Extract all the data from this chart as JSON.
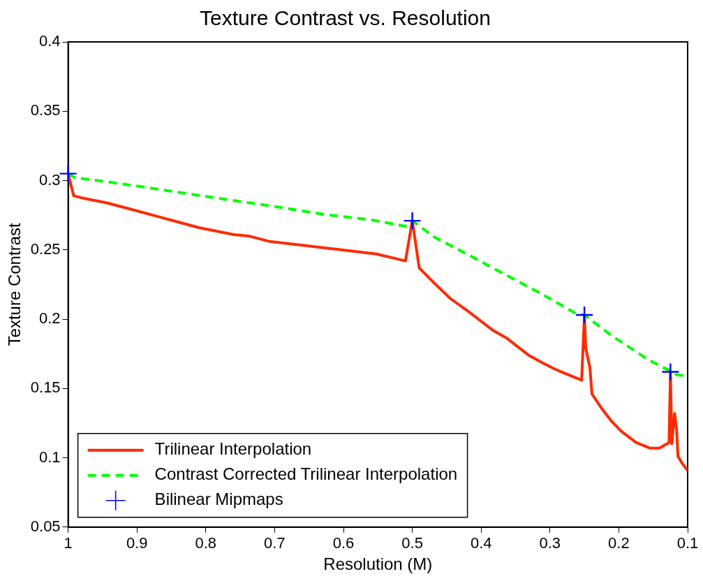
{
  "chart_data": {
    "type": "line",
    "title": "Texture Contrast vs. Resolution",
    "xlabel": "Resolution (M)",
    "ylabel": "Texture Contrast",
    "xlim": [
      1,
      0.1
    ],
    "xticks": [
      1,
      0.9,
      0.8,
      0.7,
      0.6,
      0.5,
      0.4,
      0.3,
      0.2,
      0.1
    ],
    "ylim": [
      0.05,
      0.4
    ],
    "yticks": [
      0.05,
      0.1,
      0.15,
      0.2,
      0.25,
      0.3,
      0.35,
      0.4
    ],
    "grid": false,
    "legend": "bottom left",
    "series": [
      {
        "name": "Trilinear Interpolation",
        "color": "#ff2a00",
        "line_style": "solid",
        "marker": "none",
        "x": [
          1,
          0.992,
          0.976,
          0.945,
          0.914,
          0.862,
          0.81,
          0.759,
          0.738,
          0.707,
          0.655,
          0.603,
          0.552,
          0.51,
          0.5,
          0.49,
          0.466,
          0.445,
          0.417,
          0.383,
          0.362,
          0.331,
          0.313,
          0.293,
          0.279,
          0.254,
          0.25,
          0.248,
          0.242,
          0.239,
          0.224,
          0.21,
          0.196,
          0.175,
          0.155,
          0.141,
          0.127,
          0.125,
          0.123,
          0.119,
          0.116,
          0.114,
          0.108,
          0.1
        ],
        "values": [
          0.305,
          0.289,
          0.287,
          0.284,
          0.28,
          0.273,
          0.266,
          0.261,
          0.26,
          0.256,
          0.253,
          0.25,
          0.247,
          0.242,
          0.271,
          0.237,
          0.225,
          0.215,
          0.205,
          0.192,
          0.186,
          0.174,
          0.169,
          0.164,
          0.161,
          0.156,
          0.202,
          0.179,
          0.165,
          0.146,
          0.135,
          0.126,
          0.119,
          0.111,
          0.107,
          0.107,
          0.111,
          0.161,
          0.11,
          0.132,
          0.12,
          0.101,
          0.096,
          0.091
        ]
      },
      {
        "name": "Contrast Corrected Trilinear Interpolation",
        "color": "#00ff00",
        "line_style": "dashed",
        "marker": "none",
        "x": [
          1,
          0.99,
          0.949,
          0.886,
          0.8,
          0.703,
          0.627,
          0.558,
          0.51,
          0.5,
          0.469,
          0.417,
          0.376,
          0.313,
          0.262,
          0.25,
          0.21,
          0.158,
          0.125,
          0.117,
          0.1
        ],
        "values": [
          0.305,
          0.302,
          0.2995,
          0.295,
          0.2885,
          0.2815,
          0.2755,
          0.2715,
          0.267,
          0.271,
          0.2595,
          0.246,
          0.235,
          0.2185,
          0.204,
          0.203,
          0.188,
          0.171,
          0.1625,
          0.16,
          0.159
        ]
      },
      {
        "name": "Bilinear Mipmaps",
        "type": "scatter",
        "color": "#0000ff",
        "marker": "cross",
        "x": [
          1,
          0.5,
          0.25,
          0.125
        ],
        "values": [
          0.305,
          0.271,
          0.203,
          0.162
        ]
      }
    ]
  }
}
